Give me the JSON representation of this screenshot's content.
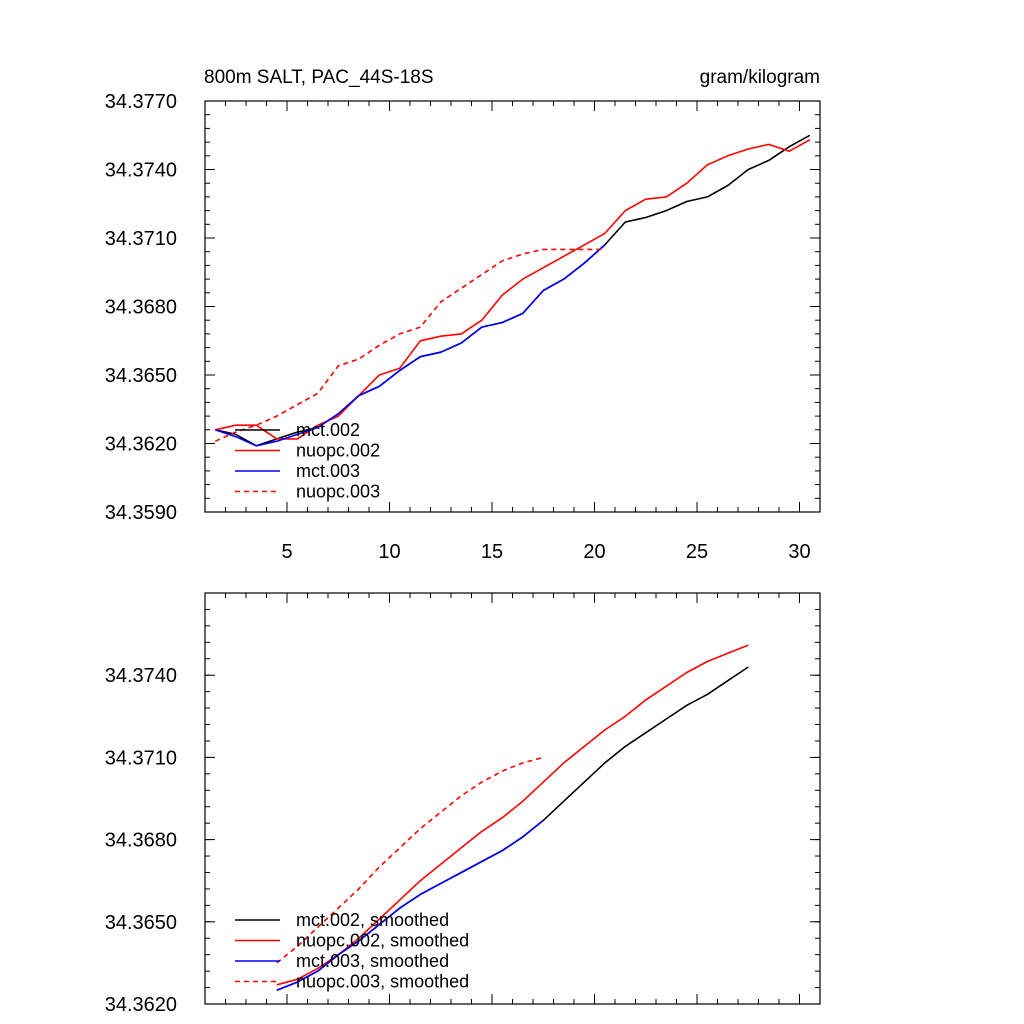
{
  "chart_data": [
    {
      "type": "line",
      "title": "800m SALT, PAC_44S-18S",
      "units": "gram/kilogram",
      "xlim": [
        1,
        31
      ],
      "ylim": [
        34.359,
        34.377
      ],
      "x_ticks": [
        5,
        10,
        15,
        20,
        25,
        30
      ],
      "y_ticks": [
        "34.3770",
        "34.3740",
        "34.3710",
        "34.3680",
        "34.3650",
        "34.3620",
        "34.3590"
      ],
      "grid": false,
      "legend_position": "bottom-left",
      "series": [
        {
          "name": "mct.002",
          "color": "#000000",
          "dash": "solid",
          "x": [
            1.5,
            2.5,
            3.5,
            4.5,
            5.5,
            6.5,
            7.5,
            8.5,
            9.5,
            10.5,
            11.5,
            12.5,
            13.5,
            14.5,
            15.5,
            16.5,
            17.5,
            18.5,
            19.5,
            20.5,
            21.5,
            22.5,
            23.5,
            24.5,
            25.5,
            26.5,
            27.5,
            28.5,
            29.5,
            30.5
          ],
          "y": [
            34.3626,
            34.3624,
            34.3619,
            34.3622,
            34.3625,
            34.3627,
            34.3633,
            34.3641,
            34.3645,
            34.3652,
            34.3658,
            34.366,
            34.3664,
            34.3671,
            34.3673,
            34.3677,
            34.3687,
            34.3692,
            34.3699,
            34.3707,
            34.3717,
            34.3719,
            34.3722,
            34.3726,
            34.3728,
            34.3733,
            34.374,
            34.3744,
            34.375,
            34.3755
          ]
        },
        {
          "name": "nuopc.002",
          "color": "#ff0000",
          "dash": "solid",
          "x": [
            1.5,
            2.5,
            3.5,
            4.5,
            5.5,
            6.5,
            7.5,
            8.5,
            9.5,
            10.5,
            11.5,
            12.5,
            13.5,
            14.5,
            15.5,
            16.5,
            17.5,
            18.5,
            19.5,
            20.5,
            21.5,
            22.5,
            23.5,
            24.5,
            25.5,
            26.5,
            27.5,
            28.5,
            29.5,
            30.5
          ],
          "y": [
            34.3626,
            34.3628,
            34.3628,
            34.3622,
            34.3622,
            34.3628,
            34.3632,
            34.3641,
            34.365,
            34.3653,
            34.3665,
            34.3667,
            34.3668,
            34.3674,
            34.3685,
            34.3692,
            34.3697,
            34.3702,
            34.3707,
            34.3712,
            34.3722,
            34.3727,
            34.3728,
            34.3734,
            34.3742,
            34.3746,
            34.3749,
            34.3751,
            34.3748,
            34.3753
          ]
        },
        {
          "name": "mct.003",
          "color": "#0000ff",
          "dash": "solid",
          "x": [
            1.5,
            2.5,
            3.5,
            4.5,
            5.5,
            6.5,
            7.5,
            8.5,
            9.5,
            10.5,
            11.5,
            12.5,
            13.5,
            14.5,
            15.5,
            16.5,
            17.5,
            18.5,
            19.5,
            20.5
          ],
          "y": [
            34.3626,
            34.3623,
            34.3619,
            34.3621,
            34.3624,
            34.3627,
            34.3633,
            34.3641,
            34.3645,
            34.3652,
            34.3658,
            34.366,
            34.3664,
            34.3671,
            34.3673,
            34.3677,
            34.3687,
            34.3692,
            34.3699,
            34.3707
          ]
        },
        {
          "name": "nuopc.003",
          "color": "#ff0000",
          "dash": "dashed",
          "x": [
            1.5,
            2.5,
            3.5,
            4.5,
            5.5,
            6.5,
            7.5,
            8.5,
            9.5,
            10.5,
            11.5,
            12.5,
            13.5,
            14.5,
            15.5,
            16.5,
            17.5,
            18.5,
            19.5,
            20.5
          ],
          "y": [
            34.3621,
            34.3625,
            34.3628,
            34.3632,
            34.3637,
            34.3642,
            34.3654,
            34.3657,
            34.3663,
            34.3668,
            34.3671,
            34.3682,
            34.3688,
            34.3694,
            34.37,
            34.3703,
            34.3705,
            34.3705,
            34.3705,
            34.3705
          ]
        }
      ]
    },
    {
      "type": "line",
      "xlim": [
        1,
        31
      ],
      "ylim": [
        34.362,
        34.377
      ],
      "y_ticks": [
        "34.3740",
        "34.3710",
        "34.3680",
        "34.3650",
        "34.3620"
      ],
      "grid": false,
      "legend_position": "bottom-left",
      "series": [
        {
          "name": "mct.002, smoothed",
          "color": "#000000",
          "dash": "solid",
          "x": [
            4.5,
            5.5,
            6.5,
            7.5,
            8.5,
            9.5,
            10.5,
            11.5,
            12.5,
            13.5,
            14.5,
            15.5,
            16.5,
            17.5,
            18.5,
            19.5,
            20.5,
            21.5,
            22.5,
            23.5,
            24.5,
            25.5,
            26.5,
            27.5
          ],
          "y": [
            34.3625,
            34.3628,
            34.3632,
            34.3638,
            34.3643,
            34.3649,
            34.3655,
            34.366,
            34.3664,
            34.3668,
            34.3672,
            34.3676,
            34.3681,
            34.3687,
            34.3694,
            34.3701,
            34.3708,
            34.3714,
            34.3719,
            34.3724,
            34.3729,
            34.3733,
            34.3738,
            34.3743
          ]
        },
        {
          "name": "nuopc.002, smoothed",
          "color": "#ff0000",
          "dash": "solid",
          "x": [
            4.5,
            5.5,
            6.5,
            7.5,
            8.5,
            9.5,
            10.5,
            11.5,
            12.5,
            13.5,
            14.5,
            15.5,
            16.5,
            17.5,
            18.5,
            19.5,
            20.5,
            21.5,
            22.5,
            23.5,
            24.5,
            25.5,
            26.5,
            27.5
          ],
          "y": [
            34.3627,
            34.3629,
            34.3633,
            34.3638,
            34.3644,
            34.3651,
            34.3658,
            34.3665,
            34.3671,
            34.3677,
            34.3683,
            34.3688,
            34.3694,
            34.3701,
            34.3708,
            34.3714,
            34.372,
            34.3725,
            34.3731,
            34.3736,
            34.3741,
            34.3745,
            34.3748,
            34.3751
          ]
        },
        {
          "name": "mct.003, smoothed",
          "color": "#0000ff",
          "dash": "solid",
          "x": [
            4.5,
            5.5,
            6.5,
            7.5,
            8.5,
            9.5,
            10.5,
            11.5,
            12.5,
            13.5,
            14.5,
            15.5,
            16.5,
            17.5
          ],
          "y": [
            34.3625,
            34.3628,
            34.3632,
            34.3638,
            34.3643,
            34.3649,
            34.3655,
            34.366,
            34.3664,
            34.3668,
            34.3672,
            34.3676,
            34.3681,
            34.3687
          ]
        },
        {
          "name": "nuopc.003, smoothed",
          "color": "#ff0000",
          "dash": "dashed",
          "x": [
            4.5,
            5.5,
            6.5,
            7.5,
            8.5,
            9.5,
            10.5,
            11.5,
            12.5,
            13.5,
            14.5,
            15.5,
            16.5,
            17.5
          ],
          "y": [
            34.3635,
            34.3641,
            34.3648,
            34.3655,
            34.3662,
            34.367,
            34.3677,
            34.3684,
            34.369,
            34.3696,
            34.3701,
            34.3705,
            34.3708,
            34.371
          ]
        }
      ]
    }
  ]
}
